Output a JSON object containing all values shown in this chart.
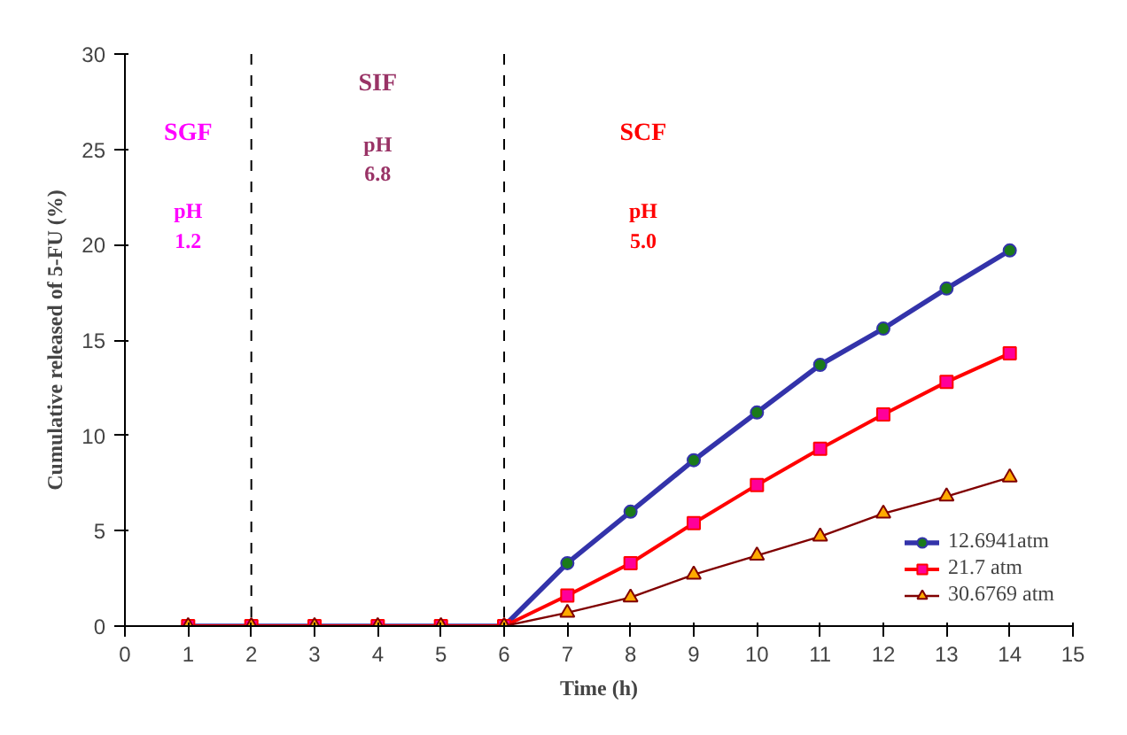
{
  "chart_data": {
    "type": "line",
    "xlabel": "Time (h)",
    "ylabel": "Cumulative released of 5-FU (%)",
    "x": [
      1,
      2,
      3,
      4,
      5,
      6,
      7,
      8,
      9,
      10,
      11,
      12,
      13,
      14
    ],
    "series": [
      {
        "name": "12.6941atm",
        "color": "#3333aa",
        "marker": "circle",
        "values": [
          0,
          0,
          0,
          0,
          0,
          0,
          3.3,
          6.0,
          8.7,
          11.2,
          13.7,
          15.6,
          17.7,
          19.7
        ]
      },
      {
        "name": "21.7 atm",
        "color": "#ff0000",
        "marker": "square",
        "values": [
          0,
          0,
          0,
          0,
          0,
          0,
          1.6,
          3.3,
          5.4,
          7.4,
          9.3,
          11.1,
          12.8,
          14.3
        ]
      },
      {
        "name": "30.6769 atm",
        "color": "#800000",
        "marker": "triangle",
        "values": [
          0,
          0,
          0,
          0,
          0,
          0,
          0.7,
          1.5,
          2.7,
          3.7,
          4.7,
          5.9,
          6.8,
          7.8
        ]
      }
    ],
    "xlim": [
      0,
      15
    ],
    "xticks": [
      0,
      1,
      2,
      3,
      4,
      5,
      6,
      7,
      8,
      9,
      10,
      11,
      12,
      13,
      14,
      15
    ],
    "ylim": [
      0,
      30
    ],
    "yticks": [
      0,
      5,
      10,
      15,
      20,
      25,
      30
    ],
    "ref_lines": [
      {
        "axis": "x",
        "value": 2,
        "line_style": "dashed"
      },
      {
        "axis": "x",
        "value": 6,
        "line_style": "dashed"
      }
    ],
    "annotations": [
      "SGF",
      "pH\n1.2",
      "SIF",
      "pH\n6.8",
      "SCF",
      "pH\n5.0"
    ],
    "grid": false,
    "legend": "bottom right"
  }
}
